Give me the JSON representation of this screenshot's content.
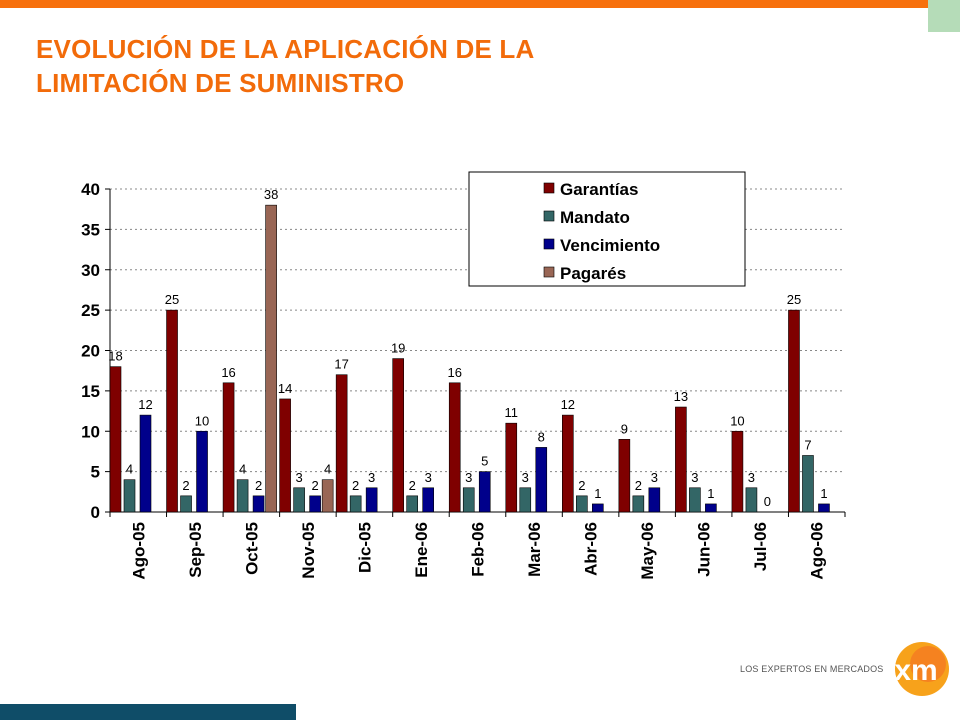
{
  "slide": {
    "title_line1": "EVOLUCIÓN DE LA APLICACIÓN DE LA",
    "title_line2": "LIMITACIÓN DE SUMINISTRO",
    "logo_text": "LOS EXPERTOS EN MERCADOS",
    "logo_mark": "xm"
  },
  "colors": {
    "accent_orange": "#f7700c",
    "title_orange": "#f26b0a",
    "footer_teal": "#0f4d68"
  },
  "chart_data": {
    "type": "bar",
    "title": "",
    "xlabel": "",
    "ylabel": "",
    "ylim": [
      0,
      40
    ],
    "yticks": [
      0,
      5,
      10,
      15,
      20,
      25,
      30,
      35,
      40
    ],
    "grid": true,
    "legend_position": "top-right",
    "categories": [
      "Ago-05",
      "Sep-05",
      "Oct-05",
      "Nov-05",
      "Dic-05",
      "Ene-06",
      "Feb-06",
      "Mar-06",
      "Abr-06",
      "May-06",
      "Jun-06",
      "Jul-06",
      "Ago-06"
    ],
    "series": [
      {
        "name": "Garantías",
        "color": "#7f0000",
        "values": [
          18,
          25,
          16,
          14,
          17,
          19,
          16,
          11,
          12,
          9,
          13,
          10,
          25
        ]
      },
      {
        "name": "Mandato",
        "color": "#336666",
        "values": [
          4,
          2,
          4,
          3,
          2,
          2,
          3,
          3,
          2,
          2,
          3,
          3,
          7
        ]
      },
      {
        "name": "Vencimiento",
        "color": "#00008b",
        "values": [
          12,
          10,
          2,
          2,
          3,
          3,
          5,
          8,
          1,
          3,
          1,
          0,
          1
        ]
      },
      {
        "name": "Pagarés",
        "color": "#996655",
        "values": [
          null,
          null,
          38,
          4,
          null,
          null,
          null,
          null,
          null,
          null,
          null,
          null,
          null
        ]
      }
    ]
  }
}
